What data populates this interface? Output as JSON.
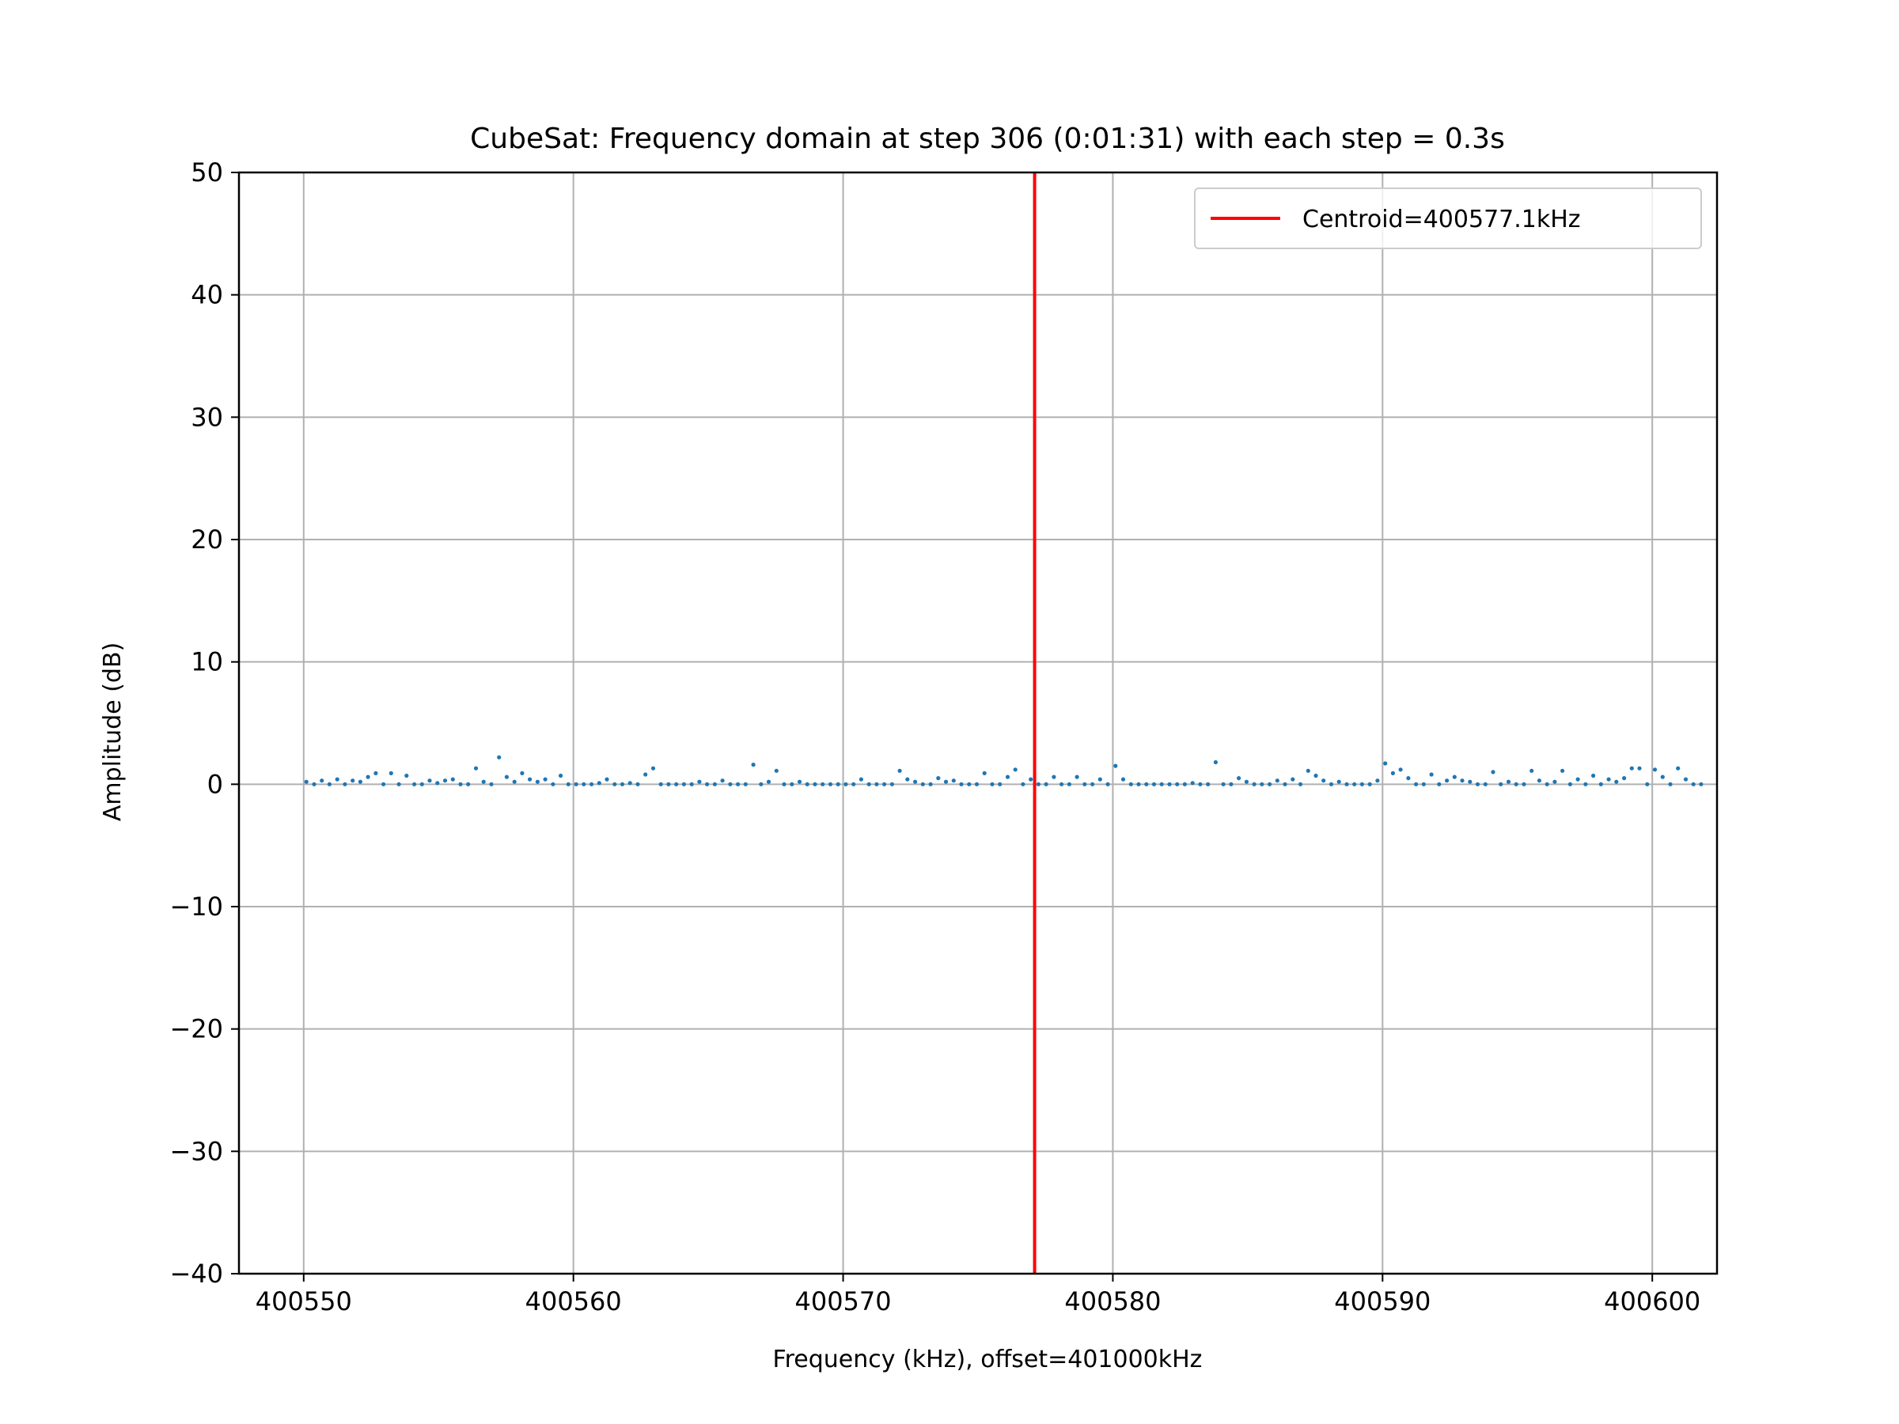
{
  "chart_data": {
    "type": "scatter",
    "title": "CubeSat: Frequency domain at step 306 (0:01:31) with each step = 0.3s",
    "xlabel": "Frequency (kHz), offset=401000kHz",
    "ylabel": "Amplitude (dB)",
    "xlim": [
      400547.6,
      400602.4
    ],
    "ylim": [
      -40,
      50
    ],
    "xticks": [
      400550,
      400560,
      400570,
      400580,
      400590,
      400600
    ],
    "yticks": [
      50,
      40,
      30,
      20,
      10,
      0,
      -10,
      -20,
      -30,
      -40
    ],
    "ytick_labels": [
      "50",
      "40",
      "30",
      "20",
      "10",
      "0",
      "−10",
      "−20",
      "−30",
      "−40"
    ],
    "grid": true,
    "legend_position": "top-right",
    "legend": [
      {
        "label": "Centroid=400577.1kHz",
        "color": "#ff0000"
      }
    ],
    "centroid_line": {
      "x": 400577.1,
      "color": "#ff0000"
    },
    "series": [
      {
        "color": "#1f77b4",
        "x_start": 400550.1,
        "x_step": 0.2857,
        "values": [
          0.2,
          0.0,
          0.3,
          0.0,
          0.4,
          0.0,
          0.3,
          0.2,
          0.6,
          0.9,
          0.0,
          0.9,
          0.0,
          0.7,
          0.0,
          0.0,
          0.3,
          0.1,
          0.3,
          0.4,
          0.0,
          0.0,
          1.3,
          0.2,
          0.0,
          2.2,
          0.6,
          0.2,
          0.9,
          0.4,
          0.2,
          0.4,
          0.0,
          0.7,
          0.0,
          0.0,
          0.0,
          0.0,
          0.1,
          0.4,
          0.0,
          0.0,
          0.1,
          0.0,
          0.8,
          1.3,
          0.0,
          0.0,
          0.0,
          0.0,
          0.0,
          0.2,
          0.0,
          0.0,
          0.3,
          0.0,
          0.0,
          0.0,
          1.6,
          0.0,
          0.2,
          1.1,
          0.0,
          0.0,
          0.2,
          0.0,
          0.0,
          0.0,
          0.0,
          0.0,
          0.0,
          0.0,
          0.4,
          0.0,
          0.0,
          0.0,
          0.0,
          1.1,
          0.4,
          0.2,
          0.0,
          0.0,
          0.5,
          0.2,
          0.3,
          0.0,
          0.0,
          0.0,
          0.9,
          0.0,
          0.0,
          0.6,
          1.2,
          0.0,
          0.4,
          0.0,
          0.0,
          0.6,
          0.0,
          0.0,
          0.6,
          0.0,
          0.0,
          0.4,
          0.0,
          1.5,
          0.4,
          0.0,
          0.0,
          0.0,
          0.0,
          0.0,
          0.0,
          0.0,
          0.0,
          0.1,
          0.0,
          0.0,
          1.8,
          0.0,
          0.0,
          0.5,
          0.2,
          0.0,
          0.0,
          0.0,
          0.3,
          0.0,
          0.4,
          0.0,
          1.1,
          0.7,
          0.3,
          0.0,
          0.2,
          0.0,
          0.0,
          0.0,
          0.0,
          0.3,
          1.7,
          0.9,
          1.2,
          0.5,
          0.0,
          0.0,
          0.8,
          0.0,
          0.3,
          0.6,
          0.3,
          0.2,
          0.0,
          0.0,
          1.0,
          0.0,
          0.2,
          0.0,
          0.0,
          1.1,
          0.3,
          0.0,
          0.2,
          1.1,
          0.0,
          0.4,
          0.0,
          0.7,
          0.0,
          0.4,
          0.2,
          0.5,
          1.3,
          1.3,
          0.0,
          1.2,
          0.6,
          0.0,
          1.3,
          0.4,
          0.0,
          0.0
        ]
      }
    ]
  }
}
